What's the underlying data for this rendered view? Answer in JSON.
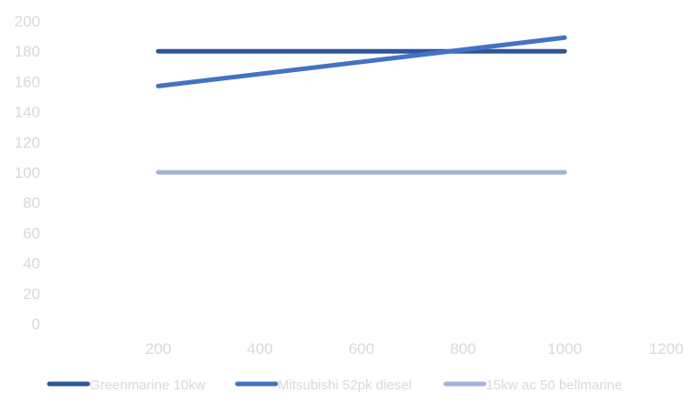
{
  "chart_data": {
    "type": "line",
    "title": "",
    "xlabel": "",
    "ylabel": "",
    "x_ticks": [
      200,
      400,
      600,
      800,
      1000,
      1200
    ],
    "y_ticks": [
      0,
      20,
      40,
      60,
      80,
      100,
      120,
      140,
      160,
      180,
      200
    ],
    "xlim": [
      0,
      1200
    ],
    "ylim": [
      0,
      200
    ],
    "grid": false,
    "legend_position": "bottom",
    "series": [
      {
        "name": "Greenmarine 10kw",
        "color": "#2e559c",
        "x": [
          200,
          1000
        ],
        "y": [
          180,
          180
        ]
      },
      {
        "name": "Mitsubishi 52pk diesel",
        "color": "#4472c4",
        "x": [
          200,
          1000
        ],
        "y": [
          157,
          189
        ]
      },
      {
        "name": "15kw ac 50 bellmarine",
        "color": "#a5b3da",
        "x": [
          200,
          1000
        ],
        "y": [
          100,
          100
        ]
      }
    ],
    "axis_label_color": "#d9d9d9"
  }
}
